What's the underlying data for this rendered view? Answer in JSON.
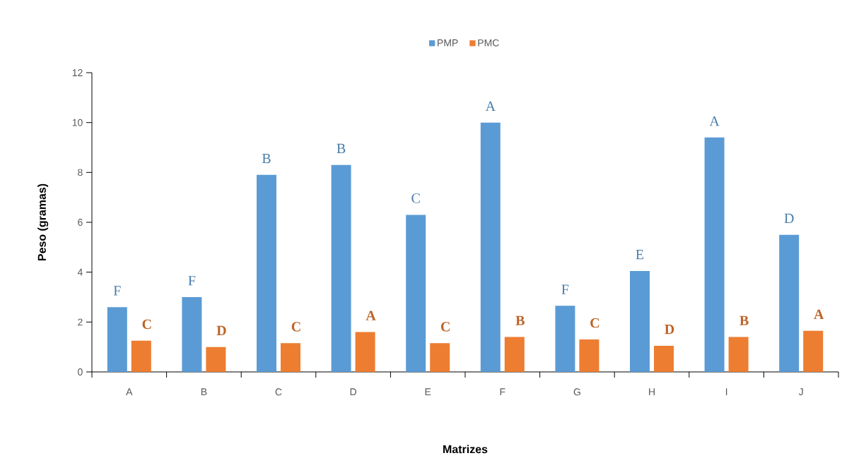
{
  "chart_data": {
    "type": "bar",
    "xlabel": "Matrizes",
    "ylabel": "Peso (gramas)",
    "categories": [
      "A",
      "B",
      "C",
      "D",
      "E",
      "F",
      "G",
      "H",
      "I",
      "J"
    ],
    "series": [
      {
        "name": "PMP",
        "color": "#5b9bd5",
        "values": [
          2.6,
          3.0,
          7.9,
          8.3,
          6.3,
          10.0,
          2.65,
          4.05,
          9.4,
          5.5
        ],
        "value_labels": [
          "F",
          "F",
          "B",
          "B",
          "C",
          "A",
          "F",
          "E",
          "A",
          "D"
        ]
      },
      {
        "name": "PMC",
        "color": "#ed7d31",
        "values": [
          1.25,
          1.0,
          1.15,
          1.6,
          1.15,
          1.4,
          1.3,
          1.05,
          1.4,
          1.65
        ],
        "value_labels": [
          "C",
          "D",
          "C",
          "A",
          "C",
          "B",
          "C",
          "D",
          "B",
          "A"
        ]
      }
    ],
    "ylim": [
      0,
      12
    ],
    "yticks": [
      0,
      2,
      4,
      6,
      8,
      10,
      12
    ],
    "legend": "top"
  }
}
